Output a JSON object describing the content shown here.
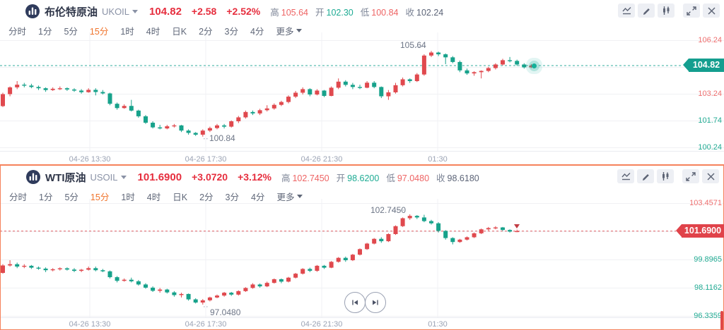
{
  "colors": {
    "up": "#e0494e",
    "down": "#17a28b",
    "price_red": "#e62e3e",
    "tag_up": "#149e8f",
    "tag_down": "#e0434a",
    "axis_red": "#ee6f6f",
    "axis_teal": "#22ab93",
    "tab_selected_orange": "#f0742c",
    "panel_active_border": "#f5815b",
    "grid": "#f0f1f4"
  },
  "tabs": {
    "items": [
      "分时",
      "1分",
      "5分",
      "15分",
      "1时",
      "4时",
      "日K",
      "2分",
      "3分",
      "4分"
    ],
    "more_label": "更多",
    "selected": "15分"
  },
  "toolbar": {
    "icons": [
      "indicator-line-chart-icon",
      "draw-pencil-icon",
      "candlestick-style-icon",
      "fullscreen-expand-icon",
      "close-icon"
    ]
  },
  "pagination": {
    "jump_to_start_icon": "skip-to-start",
    "jump_to_end_icon": "skip-to-end"
  },
  "panels": [
    {
      "header": {
        "name": "布伦特原油",
        "symbol": "UKOIL",
        "price": "104.82",
        "change": "+2.58",
        "change_pct": "+2.52%",
        "stats": [
          {
            "label": "高",
            "value": "105.64"
          },
          {
            "label": "开",
            "value": "102.30"
          },
          {
            "label": "低",
            "value": "100.84"
          },
          {
            "label": "收",
            "value": "102.24"
          }
        ]
      }
    },
    {
      "header": {
        "name": "WTI原油",
        "symbol": "USOIL",
        "price": "101.6900",
        "change": "+3.0720",
        "change_pct": "+3.12%",
        "stats": [
          {
            "label": "高",
            "value": "102.7450"
          },
          {
            "label": "开",
            "value": "98.6200"
          },
          {
            "label": "低",
            "value": "97.0480"
          },
          {
            "label": "收",
            "value": "98.6180"
          }
        ]
      }
    }
  ],
  "chart_data": [
    {
      "type": "candlestick",
      "symbol": "UKOIL",
      "name": "布伦特原油",
      "interval": "15分",
      "title": "布伦特原油 UKOIL 15分",
      "x_labels": [
        "04-26 13:30",
        "04-26 17:30",
        "04-26 21:30",
        "01:30"
      ],
      "y_ticks": [
        {
          "label": "106.24",
          "value": 106.24,
          "color": "#ee6f6f"
        },
        {
          "label": "104.74",
          "value": 104.74,
          "color": "#ee6f6f"
        },
        {
          "label": "103.24",
          "value": 103.24,
          "color": "#ee6f6f"
        },
        {
          "label": "101.74",
          "value": 101.74,
          "color": "#22ab93"
        },
        {
          "label": "100.24",
          "value": 100.24,
          "color": "#22ab93"
        }
      ],
      "ylim": [
        100.0,
        106.6
      ],
      "current_price": {
        "label": "104.82",
        "value": 104.82,
        "direction": "up"
      },
      "high_annotation": {
        "label": "105.64",
        "value": 105.64
      },
      "low_annotation": {
        "label": "100.84",
        "value": 100.84
      },
      "ohlc_format": [
        "open",
        "high",
        "low",
        "close"
      ],
      "candles": [
        [
          102.55,
          103.3,
          102.5,
          103.22
        ],
        [
          103.22,
          103.65,
          103.1,
          103.6
        ],
        [
          103.6,
          103.95,
          103.5,
          103.75
        ],
        [
          103.75,
          103.85,
          103.6,
          103.7
        ],
        [
          103.7,
          103.8,
          103.55,
          103.62
        ],
        [
          103.62,
          103.7,
          103.45,
          103.55
        ],
        [
          103.55,
          103.6,
          103.35,
          103.45
        ],
        [
          103.45,
          103.6,
          103.4,
          103.52
        ],
        [
          103.52,
          103.65,
          103.45,
          103.55
        ],
        [
          103.55,
          103.6,
          103.4,
          103.48
        ],
        [
          103.48,
          103.55,
          103.35,
          103.42
        ],
        [
          103.42,
          103.5,
          103.25,
          103.33
        ],
        [
          103.33,
          103.55,
          103.3,
          103.46
        ],
        [
          103.46,
          103.55,
          103.15,
          103.34
        ],
        [
          103.34,
          103.45,
          103.2,
          103.26
        ],
        [
          103.26,
          103.3,
          102.6,
          102.68
        ],
        [
          102.68,
          102.75,
          102.35,
          102.44
        ],
        [
          102.44,
          102.65,
          102.4,
          102.56
        ],
        [
          102.56,
          102.9,
          102.25,
          102.3
        ],
        [
          102.3,
          102.35,
          101.9,
          101.98
        ],
        [
          101.98,
          102.05,
          101.55,
          101.62
        ],
        [
          101.62,
          101.7,
          101.3,
          101.36
        ],
        [
          101.36,
          101.5,
          101.25,
          101.3
        ],
        [
          101.3,
          101.5,
          101.25,
          101.42
        ],
        [
          101.42,
          101.55,
          101.35,
          101.47
        ],
        [
          101.47,
          101.5,
          101.1,
          101.18
        ],
        [
          101.18,
          101.25,
          100.95,
          101.05
        ],
        [
          101.05,
          101.1,
          100.88,
          100.95
        ],
        [
          100.95,
          101.25,
          100.84,
          101.18
        ],
        [
          101.18,
          101.4,
          101.1,
          101.32
        ],
        [
          101.32,
          101.55,
          101.25,
          101.47
        ],
        [
          101.47,
          101.55,
          101.3,
          101.4
        ],
        [
          101.4,
          101.75,
          101.35,
          101.7
        ],
        [
          101.7,
          102.0,
          101.6,
          101.92
        ],
        [
          101.92,
          102.3,
          101.85,
          102.22
        ],
        [
          102.22,
          102.3,
          102.05,
          102.14
        ],
        [
          102.14,
          102.4,
          102.05,
          102.32
        ],
        [
          102.32,
          102.6,
          102.25,
          102.42
        ],
        [
          102.42,
          102.7,
          102.35,
          102.62
        ],
        [
          102.62,
          102.85,
          102.55,
          102.78
        ],
        [
          102.78,
          103.15,
          102.7,
          103.08
        ],
        [
          103.08,
          103.4,
          103.0,
          103.3
        ],
        [
          103.3,
          103.6,
          103.2,
          103.5
        ],
        [
          103.5,
          103.55,
          103.1,
          103.2
        ],
        [
          103.2,
          103.5,
          103.15,
          103.42
        ],
        [
          103.42,
          103.45,
          103.05,
          103.12
        ],
        [
          103.12,
          103.65,
          103.1,
          103.58
        ],
        [
          103.58,
          104.1,
          103.5,
          103.92
        ],
        [
          103.92,
          104.0,
          103.65,
          103.74
        ],
        [
          103.74,
          103.85,
          103.5,
          103.62
        ],
        [
          103.62,
          103.75,
          103.5,
          103.58
        ],
        [
          103.58,
          103.95,
          103.55,
          103.86
        ],
        [
          103.86,
          103.95,
          103.55,
          103.62
        ],
        [
          103.62,
          103.65,
          103.0,
          103.1
        ],
        [
          103.1,
          103.45,
          102.9,
          103.32
        ],
        [
          103.32,
          103.85,
          103.25,
          103.72
        ],
        [
          103.72,
          104.15,
          103.65,
          104.05
        ],
        [
          104.05,
          104.1,
          103.85,
          103.95
        ],
        [
          103.95,
          104.4,
          103.9,
          104.32
        ],
        [
          104.32,
          105.45,
          104.25,
          105.38
        ],
        [
          105.38,
          105.64,
          105.3,
          105.55
        ],
        [
          105.55,
          105.6,
          105.35,
          105.45
        ],
        [
          105.45,
          105.5,
          104.9,
          105.28
        ],
        [
          105.28,
          105.35,
          104.95,
          105.02
        ],
        [
          105.02,
          105.1,
          104.45,
          104.55
        ],
        [
          104.55,
          104.65,
          104.3,
          104.38
        ],
        [
          104.38,
          104.5,
          104.25,
          104.45
        ],
        [
          104.45,
          104.55,
          104.1,
          104.52
        ],
        [
          104.52,
          104.75,
          104.45,
          104.68
        ],
        [
          104.68,
          104.95,
          104.6,
          104.88
        ],
        [
          104.88,
          105.2,
          104.82,
          105.12
        ],
        [
          105.12,
          105.3,
          105.0,
          105.08
        ],
        [
          105.08,
          105.15,
          104.8,
          104.88
        ],
        [
          104.88,
          104.95,
          104.65,
          104.72
        ],
        [
          104.72,
          104.9,
          104.68,
          104.82
        ]
      ]
    },
    {
      "type": "candlestick",
      "symbol": "USOIL",
      "name": "WTI原油",
      "interval": "15分",
      "title": "WTI原油 USOIL 15分",
      "x_labels": [
        "04-26 13:30",
        "04-26 17:30",
        "04-26 21:30",
        "01:30"
      ],
      "y_ticks": [
        {
          "label": "103.4571",
          "value": 103.4571,
          "color": "#ee6f6f"
        },
        {
          "label": "101.6768",
          "value": 101.6768,
          "color": "#ee6f6f"
        },
        {
          "label": "99.8965",
          "value": 99.8965,
          "color": "#22ab93"
        },
        {
          "label": "98.1162",
          "value": 98.1162,
          "color": "#22ab93"
        },
        {
          "label": "96.3359",
          "value": 96.3359,
          "color": "#22ab93"
        }
      ],
      "ylim": [
        96.2,
        103.6
      ],
      "current_price": {
        "label": "101.6900",
        "value": 101.69,
        "direction": "down"
      },
      "high_annotation": {
        "label": "102.7450",
        "value": 102.745
      },
      "low_annotation": {
        "label": "97.0480",
        "value": 97.048
      },
      "ohlc_format": [
        "open",
        "high",
        "low",
        "close"
      ],
      "candles": [
        [
          99.05,
          99.6,
          99.0,
          99.52
        ],
        [
          99.52,
          99.85,
          99.45,
          99.6
        ],
        [
          99.6,
          99.7,
          99.35,
          99.45
        ],
        [
          99.45,
          99.6,
          99.35,
          99.5
        ],
        [
          99.5,
          99.55,
          99.3,
          99.38
        ],
        [
          99.38,
          99.45,
          99.25,
          99.32
        ],
        [
          99.32,
          99.4,
          99.1,
          99.22
        ],
        [
          99.22,
          99.35,
          99.15,
          99.28
        ],
        [
          99.28,
          99.4,
          99.2,
          99.34
        ],
        [
          99.34,
          99.4,
          99.2,
          99.26
        ],
        [
          99.26,
          99.35,
          99.1,
          99.18
        ],
        [
          99.18,
          99.3,
          99.1,
          99.25
        ],
        [
          99.25,
          99.45,
          99.2,
          99.35
        ],
        [
          99.35,
          99.45,
          99.15,
          99.22
        ],
        [
          99.22,
          99.3,
          99.1,
          99.15
        ],
        [
          99.15,
          99.2,
          98.7,
          98.78
        ],
        [
          98.78,
          98.85,
          98.45,
          98.55
        ],
        [
          98.55,
          98.7,
          98.5,
          98.62
        ],
        [
          98.62,
          98.75,
          98.45,
          98.52
        ],
        [
          98.52,
          98.6,
          98.25,
          98.32
        ],
        [
          98.32,
          98.4,
          98.05,
          98.12
        ],
        [
          98.12,
          98.2,
          97.85,
          97.92
        ],
        [
          97.92,
          98.1,
          97.8,
          98.0
        ],
        [
          98.0,
          98.05,
          97.75,
          97.82
        ],
        [
          97.82,
          97.9,
          97.55,
          97.65
        ],
        [
          97.65,
          97.8,
          97.5,
          97.72
        ],
        [
          97.72,
          97.75,
          97.3,
          97.38
        ],
        [
          97.38,
          97.45,
          97.12,
          97.18
        ],
        [
          97.18,
          97.4,
          97.05,
          97.32
        ],
        [
          97.32,
          97.55,
          97.25,
          97.5
        ],
        [
          97.5,
          97.68,
          97.45,
          97.62
        ],
        [
          97.62,
          97.85,
          97.55,
          97.8
        ],
        [
          97.8,
          97.85,
          97.6,
          97.68
        ],
        [
          97.68,
          97.95,
          97.62,
          97.9
        ],
        [
          97.9,
          98.15,
          97.85,
          98.1
        ],
        [
          98.1,
          98.4,
          98.05,
          98.32
        ],
        [
          98.32,
          98.38,
          98.12,
          98.2
        ],
        [
          98.2,
          98.5,
          98.15,
          98.42
        ],
        [
          98.42,
          98.7,
          98.38,
          98.65
        ],
        [
          98.65,
          98.7,
          98.4,
          98.5
        ],
        [
          98.5,
          98.8,
          98.45,
          98.75
        ],
        [
          98.75,
          99.05,
          98.7,
          99.0
        ],
        [
          99.0,
          99.35,
          98.95,
          99.3
        ],
        [
          99.3,
          99.38,
          99.1,
          99.18
        ],
        [
          99.18,
          99.55,
          99.12,
          99.5
        ],
        [
          99.5,
          99.55,
          99.3,
          99.38
        ],
        [
          99.38,
          99.8,
          99.35,
          99.75
        ],
        [
          99.75,
          100.05,
          99.7,
          100.0
        ],
        [
          100.0,
          100.08,
          99.75,
          99.85
        ],
        [
          99.85,
          100.25,
          99.8,
          100.2
        ],
        [
          100.2,
          100.6,
          100.15,
          100.55
        ],
        [
          100.55,
          100.95,
          100.5,
          100.9
        ],
        [
          100.9,
          101.25,
          100.85,
          101.2
        ],
        [
          101.2,
          101.3,
          100.95,
          101.05
        ],
        [
          101.05,
          101.55,
          101.0,
          101.5
        ],
        [
          101.5,
          102.05,
          101.45,
          102.0
        ],
        [
          102.0,
          102.55,
          101.95,
          102.5
        ],
        [
          102.5,
          102.745,
          102.4,
          102.65
        ],
        [
          102.65,
          102.7,
          102.45,
          102.55
        ],
        [
          102.55,
          102.72,
          102.25,
          102.32
        ],
        [
          102.32,
          102.4,
          102.1,
          102.18
        ],
        [
          102.18,
          102.25,
          101.6,
          101.7
        ],
        [
          101.7,
          101.75,
          101.15,
          101.25
        ],
        [
          101.25,
          101.3,
          100.85,
          101.0
        ],
        [
          101.0,
          101.2,
          100.95,
          101.15
        ],
        [
          101.15,
          101.35,
          101.1,
          101.3
        ],
        [
          101.3,
          101.6,
          101.25,
          101.55
        ],
        [
          101.55,
          101.85,
          101.5,
          101.8
        ],
        [
          101.8,
          101.95,
          101.72,
          101.88
        ],
        [
          101.88,
          102.0,
          101.8,
          101.92
        ],
        [
          101.92,
          101.95,
          101.7,
          101.76
        ],
        [
          101.76,
          101.8,
          101.6,
          101.66
        ],
        [
          101.66,
          101.78,
          101.62,
          101.69
        ]
      ]
    }
  ]
}
